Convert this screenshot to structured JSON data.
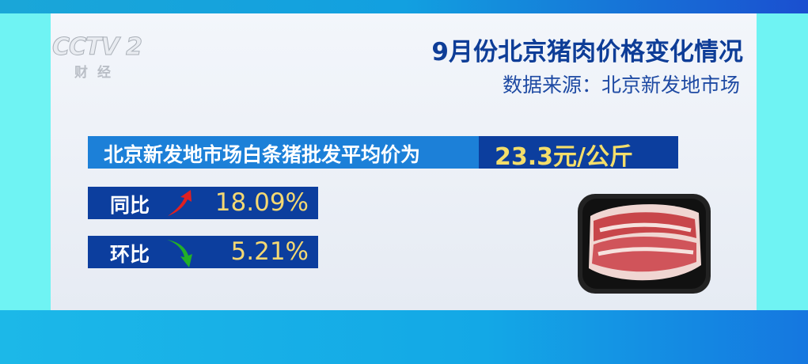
{
  "logo": {
    "text": "CCTV 2",
    "sub": "财经"
  },
  "header": {
    "title": "9月份北京猪肉价格变化情况",
    "source": "数据来源：北京新发地市场"
  },
  "headline": {
    "label": "北京新发地市场白条猪批发平均价为",
    "price": "23.3元/公斤"
  },
  "yoy": {
    "label": "同比",
    "direction": "up",
    "icon": "red-up-arrow-icon",
    "value": "18.09%"
  },
  "mom": {
    "label": "环比",
    "direction": "down",
    "icon": "green-down-arrow-icon",
    "value": "5.21%"
  },
  "colors": {
    "title": "#0e3d97",
    "headline_bar": "#1c80d8",
    "dark_bar": "#0c3e9e",
    "value_yellow": "#f4de6a",
    "up": "#e02020",
    "down": "#22b028"
  }
}
